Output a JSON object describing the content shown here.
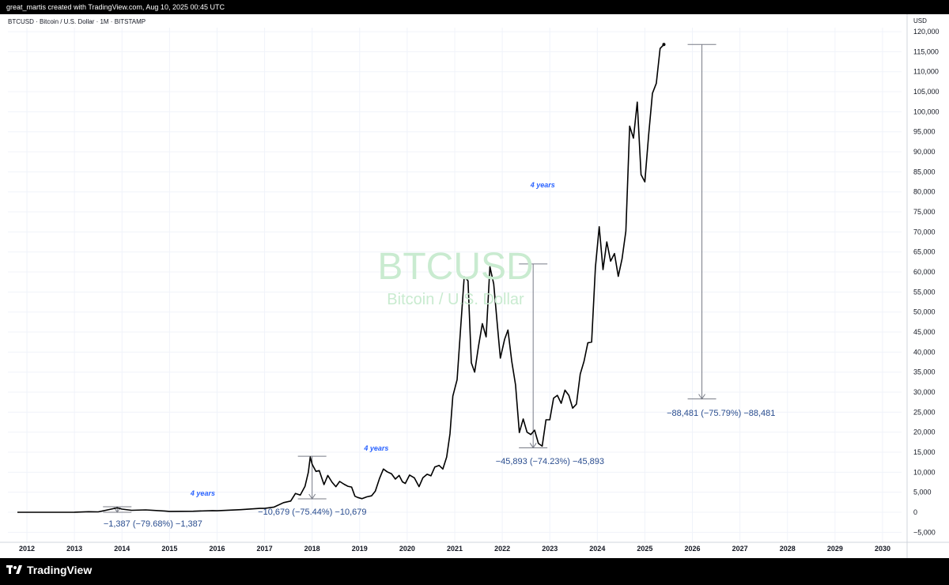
{
  "header": {
    "credit": "great_martis created with TradingView.com, Aug 10, 2025 00:45 UTC"
  },
  "symbol": {
    "line": "BTCUSD · Bitcoin / U.S. Dollar · 1M · BITSTAMP"
  },
  "watermark": {
    "ticker": "BTCUSD",
    "name": "Bitcoin / U.S. Dollar"
  },
  "footer": {
    "brand": "TradingView"
  },
  "colors": {
    "line": "#000000",
    "annotation": "#2a4d8f",
    "years_label": "#2962ff",
    "watermark": "#c9ebd0"
  },
  "chart_data": {
    "type": "line",
    "title": "BTCUSD · Bitcoin / U.S. Dollar · 1M · BITSTAMP",
    "yunit": "USD",
    "xlim": [
      2011.6,
      2030.4
    ],
    "ylim": [
      -7500,
      121000
    ],
    "x_ticks": [
      "2012",
      "2013",
      "2014",
      "2015",
      "2016",
      "2017",
      "2018",
      "2019",
      "2020",
      "2021",
      "2022",
      "2023",
      "2024",
      "2025",
      "2026",
      "2027",
      "2028",
      "2029",
      "2030"
    ],
    "y_ticks": [
      -5000,
      0,
      5000,
      10000,
      15000,
      20000,
      25000,
      30000,
      35000,
      40000,
      45000,
      50000,
      55000,
      60000,
      65000,
      70000,
      75000,
      80000,
      85000,
      90000,
      95000,
      100000,
      105000,
      110000,
      115000,
      120000
    ],
    "y_tick_labels": [
      "−5,000",
      "0",
      "5,000",
      "10,000",
      "15,000",
      "20,000",
      "25,000",
      "30,000",
      "35,000",
      "40,000",
      "45,000",
      "50,000",
      "55,000",
      "60,000",
      "65,000",
      "70,000",
      "75,000",
      "80,000",
      "85,000",
      "90,000",
      "95,000",
      "100,000",
      "105,000",
      "110,000",
      "115,000",
      "120,000"
    ],
    "grid": true,
    "series": [
      {
        "points": [
          [
            2011.8,
            5
          ],
          [
            2012.5,
            7
          ],
          [
            2013.0,
            15
          ],
          [
            2013.3,
            140
          ],
          [
            2013.5,
            100
          ],
          [
            2013.9,
            1100
          ],
          [
            2014.0,
            800
          ],
          [
            2014.2,
            500
          ],
          [
            2014.5,
            600
          ],
          [
            2014.9,
            320
          ],
          [
            2015.0,
            220
          ],
          [
            2015.5,
            260
          ],
          [
            2015.9,
            420
          ],
          [
            2016.0,
            380
          ],
          [
            2016.5,
            650
          ],
          [
            2016.9,
            960
          ],
          [
            2017.0,
            970
          ],
          [
            2017.2,
            1300
          ],
          [
            2017.4,
            2400
          ],
          [
            2017.55,
            2800
          ],
          [
            2017.65,
            4700
          ],
          [
            2017.75,
            4300
          ],
          [
            2017.85,
            6500
          ],
          [
            2017.92,
            10000
          ],
          [
            2017.96,
            13800
          ],
          [
            2018.0,
            12000
          ],
          [
            2018.08,
            10200
          ],
          [
            2018.15,
            10400
          ],
          [
            2018.25,
            6900
          ],
          [
            2018.33,
            9200
          ],
          [
            2018.42,
            7500
          ],
          [
            2018.5,
            6400
          ],
          [
            2018.58,
            7700
          ],
          [
            2018.67,
            7000
          ],
          [
            2018.75,
            6500
          ],
          [
            2018.83,
            6300
          ],
          [
            2018.9,
            4000
          ],
          [
            2018.96,
            3700
          ],
          [
            2019.05,
            3400
          ],
          [
            2019.15,
            3850
          ],
          [
            2019.25,
            4100
          ],
          [
            2019.33,
            5300
          ],
          [
            2019.42,
            8500
          ],
          [
            2019.5,
            10800
          ],
          [
            2019.58,
            10100
          ],
          [
            2019.67,
            9600
          ],
          [
            2019.75,
            8300
          ],
          [
            2019.83,
            9200
          ],
          [
            2019.9,
            7600
          ],
          [
            2019.96,
            7200
          ],
          [
            2020.05,
            9300
          ],
          [
            2020.15,
            8600
          ],
          [
            2020.25,
            6400
          ],
          [
            2020.33,
            8600
          ],
          [
            2020.42,
            9500
          ],
          [
            2020.5,
            9100
          ],
          [
            2020.58,
            11300
          ],
          [
            2020.67,
            11700
          ],
          [
            2020.75,
            10800
          ],
          [
            2020.83,
            13800
          ],
          [
            2020.9,
            19600
          ],
          [
            2020.96,
            29000
          ],
          [
            2021.05,
            33100
          ],
          [
            2021.12,
            45200
          ],
          [
            2021.2,
            58800
          ],
          [
            2021.28,
            57800
          ],
          [
            2021.35,
            37300
          ],
          [
            2021.42,
            35000
          ],
          [
            2021.5,
            41500
          ],
          [
            2021.58,
            47100
          ],
          [
            2021.66,
            43800
          ],
          [
            2021.74,
            61300
          ],
          [
            2021.82,
            57000
          ],
          [
            2021.9,
            46300
          ],
          [
            2021.96,
            38500
          ],
          [
            2022.05,
            43200
          ],
          [
            2022.12,
            45500
          ],
          [
            2022.2,
            37700
          ],
          [
            2022.28,
            31800
          ],
          [
            2022.36,
            19900
          ],
          [
            2022.44,
            23300
          ],
          [
            2022.52,
            20000
          ],
          [
            2022.6,
            19400
          ],
          [
            2022.68,
            20500
          ],
          [
            2022.76,
            17200
          ],
          [
            2022.84,
            16500
          ],
          [
            2022.92,
            23100
          ],
          [
            2023.0,
            23100
          ],
          [
            2023.08,
            28500
          ],
          [
            2023.16,
            29200
          ],
          [
            2023.24,
            27200
          ],
          [
            2023.32,
            30500
          ],
          [
            2023.4,
            29200
          ],
          [
            2023.48,
            26000
          ],
          [
            2023.56,
            27000
          ],
          [
            2023.64,
            34500
          ],
          [
            2023.72,
            37700
          ],
          [
            2023.8,
            42300
          ],
          [
            2023.88,
            42500
          ],
          [
            2023.96,
            61200
          ],
          [
            2024.04,
            71300
          ],
          [
            2024.12,
            60600
          ],
          [
            2024.2,
            67500
          ],
          [
            2024.28,
            62700
          ],
          [
            2024.36,
            64600
          ],
          [
            2024.44,
            58900
          ],
          [
            2024.52,
            63300
          ],
          [
            2024.6,
            70200
          ],
          [
            2024.68,
            96400
          ],
          [
            2024.76,
            93400
          ],
          [
            2024.84,
            102400
          ],
          [
            2024.92,
            84300
          ],
          [
            2025.0,
            82500
          ],
          [
            2025.08,
            94200
          ],
          [
            2025.16,
            104600
          ],
          [
            2025.24,
            107100
          ],
          [
            2025.32,
            115800
          ],
          [
            2025.4,
            116800
          ]
        ]
      }
    ],
    "annotations": [
      {
        "text": "−1,387 (−79.68%) −1,387",
        "x": 2014.65,
        "y": -3100
      },
      {
        "text": "−10,679 (−75.44%) −10,679",
        "x": 2018.0,
        "y": -100
      },
      {
        "text": "−45,893 (−74.23%) −45,893",
        "x": 2023.0,
        "y": 12500
      },
      {
        "text": "−88,481 (−75.79%) −88,481",
        "x": 2026.6,
        "y": 24500
      }
    ],
    "years_labels": [
      {
        "text": "4 years",
        "x": 2015.7,
        "y": 4500
      },
      {
        "text": "4 years",
        "x": 2019.35,
        "y": 15800
      },
      {
        "text": "4 years",
        "x": 2022.85,
        "y": 81500
      }
    ],
    "drawdowns": [
      {
        "x": 2013.9,
        "top": 1387,
        "bottom": 0
      },
      {
        "x": 2018.0,
        "top": 14000,
        "bottom": 3350
      },
      {
        "x": 2022.65,
        "top": 62000,
        "bottom": 16100
      },
      {
        "x": 2026.2,
        "top": 116800,
        "bottom": 28300
      }
    ]
  }
}
